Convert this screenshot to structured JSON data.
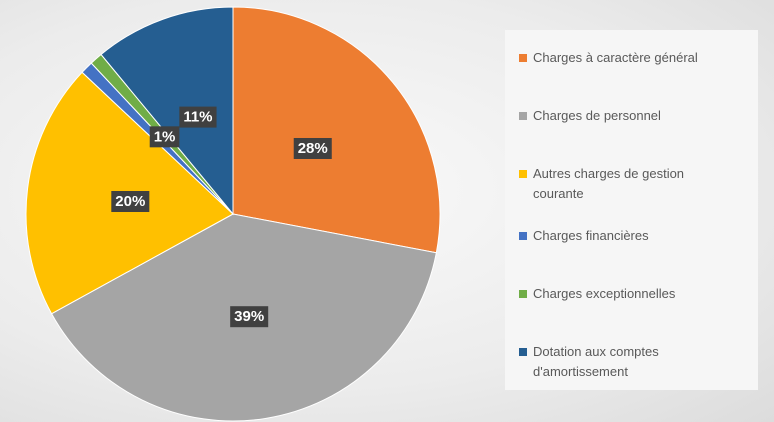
{
  "chart_data": {
    "type": "pie",
    "categories": [
      "Charges à caractère général",
      "Charges de personnel",
      "Autres charges de gestion courante",
      "Charges financières",
      "Charges exceptionnelles",
      "Dotation aux comptes d'amortissement"
    ],
    "values": [
      28,
      39,
      20,
      1,
      1,
      11
    ],
    "value_labels": [
      "28%",
      "39%",
      "20%",
      null,
      "1%",
      "11%"
    ],
    "colors": [
      "#ed7d31",
      "#a5a5a5",
      "#ffc000",
      "#4472c4",
      "#70ad47",
      "#255e91"
    ],
    "legend": "right"
  }
}
